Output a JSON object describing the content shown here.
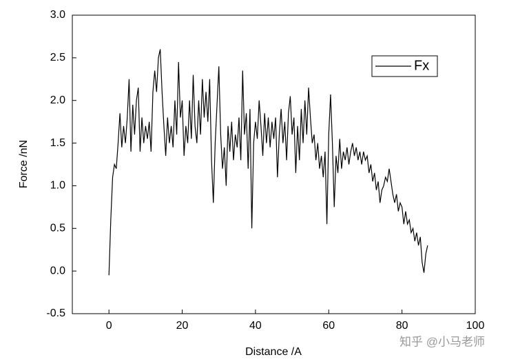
{
  "chart_data": {
    "type": "line",
    "xlabel": "Distance /A",
    "ylabel": "Force /nN",
    "watermark": "知乎 @小马老师",
    "legend": "top-right",
    "xlim": [
      -10,
      100
    ],
    "xticks": [
      0,
      20,
      40,
      60,
      80,
      100
    ],
    "ylim": [
      -0.5,
      3.0
    ],
    "yticks": [
      -0.5,
      {
        "value": 0,
        "label": "0.0"
      },
      0.5,
      {
        "value": 1,
        "label": "1.0"
      },
      1.5,
      {
        "value": 2,
        "label": "2.0"
      },
      2.5,
      {
        "value": 3,
        "label": "3.0"
      }
    ],
    "x": [
      0,
      0.5,
      1,
      1.5,
      2,
      2.5,
      3,
      3.5,
      4,
      4.5,
      5,
      5.5,
      6,
      6.5,
      7,
      7.5,
      8,
      8.5,
      9,
      9.5,
      10,
      10.5,
      11,
      11.5,
      12,
      12.5,
      13,
      13.5,
      14,
      14.5,
      15,
      15.5,
      16,
      16.5,
      17,
      17.5,
      18,
      18.5,
      19,
      19.5,
      20,
      20.5,
      21,
      21.5,
      22,
      22.5,
      23,
      23.5,
      24,
      24.5,
      25,
      25.5,
      26,
      26.5,
      27,
      27.5,
      28,
      28.5,
      29,
      29.5,
      30,
      30.5,
      31,
      31.5,
      32,
      32.5,
      33,
      33.5,
      34,
      34.5,
      35,
      35.5,
      36,
      36.5,
      37,
      37.5,
      38,
      38.5,
      39,
      39.5,
      40,
      40.5,
      41,
      41.5,
      42,
      42.5,
      43,
      43.5,
      44,
      44.5,
      45,
      45.5,
      46,
      46.5,
      47,
      47.5,
      48,
      48.5,
      49,
      49.5,
      50,
      50.5,
      51,
      51.5,
      52,
      52.5,
      53,
      53.5,
      54,
      54.5,
      55,
      55.5,
      56,
      56.5,
      57,
      57.5,
      58,
      58.5,
      59,
      59.5,
      60,
      60.5,
      61,
      61.5,
      62,
      62.5,
      63,
      63.5,
      64,
      64.5,
      65,
      65.5,
      66,
      66.5,
      67,
      67.5,
      68,
      68.5,
      69,
      69.5,
      70,
      70.5,
      71,
      71.5,
      72,
      72.5,
      73,
      73.5,
      74,
      74.5,
      75,
      75.5,
      76,
      76.5,
      77,
      77.5,
      78,
      78.5,
      79,
      79.5,
      80,
      80.5,
      81,
      81.5,
      82,
      82.5,
      83,
      83.5,
      84,
      84.5,
      85,
      85.5,
      86,
      86.5,
      87
    ],
    "series": [
      {
        "name": "Fx",
        "color": "#000000",
        "values": [
          -0.05,
          0.6,
          1.1,
          1.25,
          1.2,
          1.5,
          1.85,
          1.45,
          1.7,
          1.5,
          1.8,
          2.25,
          1.4,
          1.95,
          1.6,
          2.0,
          2.15,
          1.4,
          1.8,
          1.5,
          1.7,
          1.55,
          1.75,
          1.4,
          2.1,
          2.35,
          2.1,
          2.5,
          2.6,
          2.1,
          1.7,
          1.35,
          1.8,
          1.5,
          1.7,
          1.45,
          2.0,
          1.6,
          2.45,
          1.8,
          2.0,
          1.35,
          1.7,
          1.5,
          2.0,
          1.55,
          2.3,
          1.7,
          1.5,
          2.0,
          1.6,
          2.25,
          1.8,
          2.1,
          1.75,
          2.25,
          1.3,
          0.8,
          1.5,
          1.95,
          2.4,
          1.6,
          1.2,
          1.45,
          1.0,
          1.7,
          1.4,
          1.75,
          1.3,
          1.6,
          1.45,
          1.8,
          1.3,
          2.35,
          1.6,
          1.85,
          1.2,
          1.9,
          0.5,
          1.5,
          1.75,
          1.55,
          2.0,
          1.7,
          1.35,
          1.85,
          1.5,
          1.8,
          1.45,
          1.75,
          1.55,
          1.8,
          1.1,
          1.6,
          1.9,
          1.5,
          1.75,
          1.3,
          1.85,
          2.05,
          1.6,
          1.8,
          1.15,
          1.7,
          1.3,
          1.9,
          1.5,
          2.0,
          1.6,
          2.15,
          1.8,
          1.5,
          1.6,
          1.3,
          1.5,
          1.2,
          1.35,
          1.1,
          1.4,
          0.55,
          1.6,
          2.07,
          1.5,
          0.75,
          1.35,
          1.15,
          1.55,
          1.2,
          1.4,
          1.3,
          1.45,
          1.25,
          1.4,
          1.5,
          1.35,
          1.45,
          1.3,
          1.4,
          1.25,
          1.4,
          1.3,
          1.35,
          1.15,
          1.25,
          1.05,
          1.15,
          0.95,
          1.05,
          0.8,
          0.95,
          1.0,
          1.1,
          1.05,
          1.2,
          1.05,
          0.9,
          0.8,
          0.9,
          0.7,
          0.8,
          0.75,
          0.55,
          0.7,
          0.55,
          0.6,
          0.45,
          0.5,
          0.35,
          0.45,
          0.3,
          0.4,
          0.1,
          -0.02,
          0.2,
          0.3
        ]
      }
    ]
  }
}
